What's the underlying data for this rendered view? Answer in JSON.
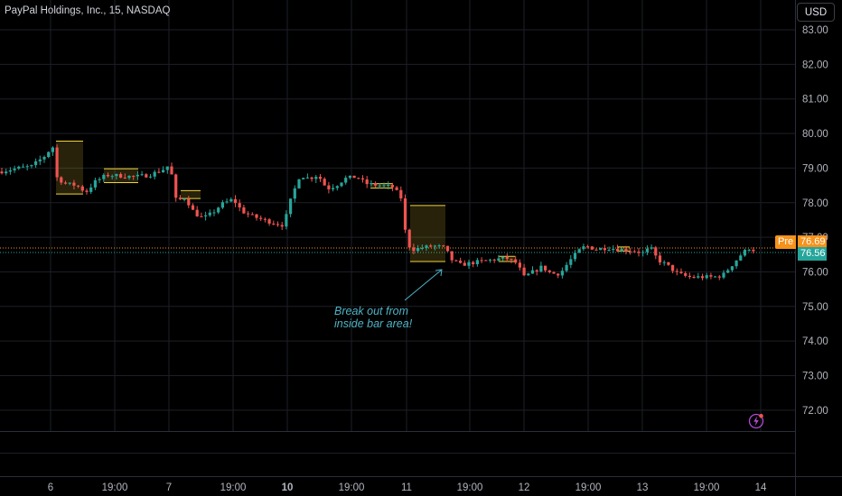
{
  "header": {
    "symbol_title": "PayPal Holdings, Inc., 15, NASDAQ",
    "currency_button": "USD"
  },
  "annotation": {
    "line1": "Break out from",
    "line2": "inside bar area!"
  },
  "price_badges": {
    "pre_label": "Pre",
    "pre_value": "76.69",
    "last_value": "76.56",
    "pre_color": "#f7921a",
    "last_color": "#26a69a"
  },
  "colors": {
    "up": "#26a69a",
    "down": "#ef5350",
    "box": "#f0d33a",
    "annotation": "#4fb3c6",
    "grid": "#1c1f27"
  },
  "icons": [
    "lightning-icon",
    "arrow-annotation"
  ],
  "chart_data": {
    "type": "candlestick",
    "y_ticks": [
      "83.00",
      "82.00",
      "81.00",
      "80.00",
      "79.00",
      "78.00",
      "77.00",
      "76.00",
      "75.00",
      "74.00",
      "73.00",
      "72.00"
    ],
    "ylim": [
      71.6,
      83.4
    ],
    "x_ticks": [
      "6",
      "19:00",
      "7",
      "19:00",
      "10",
      "19:00",
      "11",
      "19:00",
      "12",
      "19:00",
      "13",
      "19:00",
      "14"
    ],
    "bold_x_ticks": [
      "10"
    ],
    "pre_price": 76.69,
    "last_price": 76.56,
    "inside_bar_boxes": [
      {
        "start": 62,
        "end": 92,
        "low": 78.25,
        "high": 79.78
      },
      {
        "start": 115,
        "end": 153,
        "low": 78.58,
        "high": 78.98
      },
      {
        "start": 200,
        "end": 222,
        "low": 78.12,
        "high": 78.35
      },
      {
        "start": 410,
        "end": 435,
        "low": 78.42,
        "high": 78.55
      },
      {
        "start": 454,
        "end": 493,
        "low": 76.3,
        "high": 77.92
      },
      {
        "start": 552,
        "end": 570,
        "low": 76.3,
        "high": 76.45
      },
      {
        "start": 684,
        "end": 697,
        "low": 76.6,
        "high": 76.72
      }
    ],
    "anchors": [
      [
        0,
        78.9
      ],
      [
        20,
        79.0
      ],
      [
        35,
        79.05
      ],
      [
        52,
        79.4
      ],
      [
        58,
        79.7
      ],
      [
        62,
        78.75
      ],
      [
        72,
        78.55
      ],
      [
        85,
        78.5
      ],
      [
        95,
        78.3
      ],
      [
        105,
        78.6
      ],
      [
        118,
        78.8
      ],
      [
        150,
        78.75
      ],
      [
        165,
        78.8
      ],
      [
        180,
        78.95
      ],
      [
        188,
        79.1
      ],
      [
        195,
        78.05
      ],
      [
        205,
        78.15
      ],
      [
        215,
        77.7
      ],
      [
        225,
        77.55
      ],
      [
        235,
        77.7
      ],
      [
        245,
        77.95
      ],
      [
        258,
        78.1
      ],
      [
        268,
        77.75
      ],
      [
        280,
        77.6
      ],
      [
        292,
        77.5
      ],
      [
        305,
        77.4
      ],
      [
        314,
        77.35
      ],
      [
        322,
        78.1
      ],
      [
        332,
        78.8
      ],
      [
        342,
        78.7
      ],
      [
        352,
        78.8
      ],
      [
        362,
        78.4
      ],
      [
        372,
        78.5
      ],
      [
        382,
        78.7
      ],
      [
        395,
        78.75
      ],
      [
        405,
        78.55
      ],
      [
        420,
        78.5
      ],
      [
        435,
        78.45
      ],
      [
        445,
        78.1
      ],
      [
        450,
        76.8
      ],
      [
        458,
        76.65
      ],
      [
        468,
        76.7
      ],
      [
        480,
        76.75
      ],
      [
        492,
        76.7
      ],
      [
        500,
        76.35
      ],
      [
        510,
        76.2
      ],
      [
        520,
        76.25
      ],
      [
        532,
        76.3
      ],
      [
        545,
        76.35
      ],
      [
        560,
        76.4
      ],
      [
        572,
        76.25
      ],
      [
        580,
        75.85
      ],
      [
        590,
        76.0
      ],
      [
        600,
        76.15
      ],
      [
        610,
        75.95
      ],
      [
        620,
        75.95
      ],
      [
        630,
        76.3
      ],
      [
        640,
        76.6
      ],
      [
        648,
        76.75
      ],
      [
        660,
        76.65
      ],
      [
        672,
        76.7
      ],
      [
        685,
        76.65
      ],
      [
        700,
        76.62
      ],
      [
        712,
        76.55
      ],
      [
        720,
        76.7
      ],
      [
        728,
        76.35
      ],
      [
        738,
        76.2
      ],
      [
        750,
        75.95
      ],
      [
        762,
        75.85
      ],
      [
        775,
        75.85
      ],
      [
        790,
        75.85
      ],
      [
        800,
        75.9
      ],
      [
        812,
        76.25
      ],
      [
        822,
        76.55
      ],
      [
        830,
        76.7
      ],
      [
        836,
        76.6
      ]
    ]
  }
}
